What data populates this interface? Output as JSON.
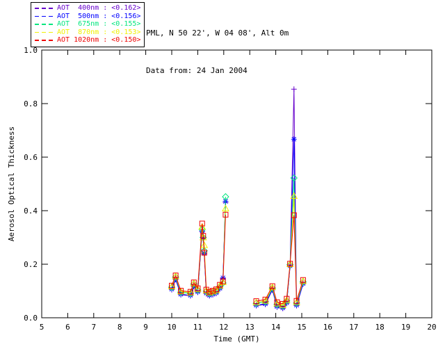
{
  "header": {
    "line1": "PML, N 50 22', W 04 08', Alt 0m",
    "line2": "Data from: 24 Jan 2004"
  },
  "colors": {
    "background": "#ffffff",
    "axis": "#000000",
    "aot400": "#6600cc",
    "aot500": "#0000ff",
    "aot675": "#00e67e",
    "aot870": "#f0f000",
    "aot1020": "#ee0000"
  },
  "chart_data": {
    "type": "line",
    "title": "",
    "xlabel": "Time (GMT)",
    "ylabel": "Aerosol Optical Thickness",
    "xlim": [
      5,
      20
    ],
    "ylim": [
      0.0,
      1.0
    ],
    "xticks": [
      5,
      6,
      7,
      8,
      9,
      10,
      11,
      12,
      13,
      14,
      15,
      16,
      17,
      18,
      19,
      20
    ],
    "yticks": [
      0.0,
      0.2,
      0.4,
      0.6,
      0.8,
      1.0
    ],
    "grid": false,
    "legend_position": "top-left-outside",
    "series": [
      {
        "name": "AOT 400nm",
        "legend_label": "AOT  400nm : <0.162>",
        "mean": 0.162,
        "color": "#6600cc",
        "marker": "plus",
        "segments": [
          {
            "t": [
              10.0,
              10.15,
              10.35,
              10.72,
              10.85,
              11.0,
              11.17,
              11.21,
              11.25,
              11.33,
              11.45,
              11.58,
              11.71,
              11.85,
              11.97,
              12.07
            ],
            "v": [
              0.105,
              0.143,
              0.086,
              0.082,
              0.117,
              0.095,
              0.322,
              0.296,
              0.239,
              0.09,
              0.082,
              0.086,
              0.091,
              0.108,
              0.147,
              0.43
            ]
          },
          {
            "t": [
              13.25,
              13.6,
              13.87,
              14.05,
              14.27,
              14.42,
              14.55,
              14.7,
              14.8,
              15.05
            ],
            "v": [
              0.045,
              0.05,
              0.104,
              0.04,
              0.035,
              0.054,
              0.192,
              0.854,
              0.045,
              0.126
            ]
          }
        ]
      },
      {
        "name": "AOT 500nm",
        "legend_label": "AOT  500nm : <0.156>",
        "mean": 0.156,
        "color": "#0000ff",
        "marker": "asterisk",
        "segments": [
          {
            "t": [
              10.0,
              10.15,
              10.35,
              10.72,
              10.85,
              11.0,
              11.17,
              11.21,
              11.25,
              11.33,
              11.45,
              11.58,
              11.71,
              11.85,
              11.97,
              12.07
            ],
            "v": [
              0.107,
              0.145,
              0.088,
              0.084,
              0.119,
              0.097,
              0.324,
              0.298,
              0.241,
              0.092,
              0.084,
              0.088,
              0.093,
              0.11,
              0.149,
              0.435
            ]
          },
          {
            "t": [
              13.25,
              13.6,
              13.87,
              14.05,
              14.27,
              14.42,
              14.55,
              14.7,
              14.8,
              15.05
            ],
            "v": [
              0.047,
              0.052,
              0.106,
              0.042,
              0.037,
              0.056,
              0.194,
              0.667,
              0.047,
              0.128
            ]
          }
        ]
      },
      {
        "name": "AOT 675nm",
        "legend_label": "AOT  675nm : <0.155>",
        "mean": 0.155,
        "color": "#00e67e",
        "marker": "diamond",
        "segments": [
          {
            "t": [
              10.0,
              10.15,
              10.35,
              10.72,
              10.85,
              11.0,
              11.17,
              11.21,
              11.25,
              11.33,
              11.45,
              11.58,
              11.71,
              11.85,
              11.97,
              12.07
            ],
            "v": [
              0.114,
              0.152,
              0.095,
              0.091,
              0.126,
              0.104,
              0.33,
              0.3,
              0.25,
              0.099,
              0.091,
              0.095,
              0.1,
              0.117,
              0.13,
              0.452
            ]
          },
          {
            "t": [
              13.25,
              13.6,
              13.87,
              14.05,
              14.27,
              14.42,
              14.55,
              14.7,
              14.8,
              15.05
            ],
            "v": [
              0.054,
              0.06,
              0.111,
              0.05,
              0.044,
              0.063,
              0.198,
              0.522,
              0.055,
              0.134
            ]
          }
        ]
      },
      {
        "name": "AOT 870nm",
        "legend_label": "AOT  870nm : <0.153>",
        "mean": 0.153,
        "color": "#f0f000",
        "marker": "triangle",
        "segments": [
          {
            "t": [
              10.0,
              10.15,
              10.35,
              10.72,
              10.85,
              11.0,
              11.17,
              11.21,
              11.25,
              11.33,
              11.45,
              11.58,
              11.71,
              11.85,
              11.97,
              12.07
            ],
            "v": [
              0.117,
              0.155,
              0.098,
              0.094,
              0.129,
              0.107,
              0.34,
              0.3,
              0.271,
              0.102,
              0.094,
              0.098,
              0.103,
              0.12,
              0.133,
              0.408
            ]
          },
          {
            "t": [
              13.25,
              13.6,
              13.87,
              14.05,
              14.27,
              14.42,
              14.55,
              14.7,
              14.8,
              15.05
            ],
            "v": [
              0.057,
              0.063,
              0.114,
              0.053,
              0.047,
              0.066,
              0.2,
              0.455,
              0.058,
              0.137
            ]
          }
        ]
      },
      {
        "name": "AOT 1020nm",
        "legend_label": "AOT 1020nm : <0.150>",
        "mean": 0.15,
        "color": "#ee0000",
        "marker": "square",
        "segments": [
          {
            "t": [
              10.0,
              10.15,
              10.35,
              10.72,
              10.85,
              11.0,
              11.17,
              11.21,
              11.25,
              11.33,
              11.45,
              11.58,
              11.71,
              11.85,
              11.97,
              12.07
            ],
            "v": [
              0.12,
              0.158,
              0.101,
              0.097,
              0.132,
              0.11,
              0.352,
              0.306,
              0.243,
              0.105,
              0.097,
              0.101,
              0.106,
              0.123,
              0.136,
              0.385
            ]
          },
          {
            "t": [
              13.25,
              13.6,
              13.87,
              14.05,
              14.27,
              14.42,
              14.55,
              14.7,
              14.8,
              15.05
            ],
            "v": [
              0.062,
              0.068,
              0.118,
              0.058,
              0.052,
              0.071,
              0.202,
              0.383,
              0.063,
              0.141
            ]
          }
        ]
      }
    ]
  }
}
